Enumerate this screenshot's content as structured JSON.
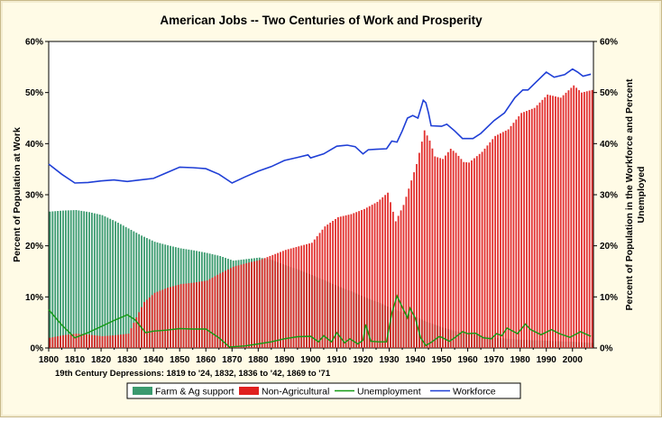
{
  "chart_data": {
    "type": "bar",
    "title": "American Jobs --  Two Centuries of  Work and Prosperity",
    "xlabel": "",
    "ylabel": "Percent of Population at Work",
    "ylabel_right_line1": "Percent of Population in the Workforce and Percent",
    "ylabel_right_line2": "Unemployed",
    "annotation": "19th Century Depressions: 1819 to '24, 1832, 1836 to '42, 1869 to '71",
    "xlim": [
      1800,
      2008
    ],
    "ylim": [
      0,
      60
    ],
    "x_ticks": [
      1800,
      1810,
      1820,
      1830,
      1840,
      1850,
      1860,
      1870,
      1880,
      1890,
      1900,
      1910,
      1920,
      1930,
      1940,
      1950,
      1960,
      1970,
      1980,
      1990,
      2000
    ],
    "y_ticks_left": [
      "0%",
      "10%",
      "20%",
      "30%",
      "40%",
      "50%",
      "60%"
    ],
    "y_ticks_right": [
      "0%",
      "10%",
      "20%",
      "30%",
      "40%",
      "50%",
      "60%"
    ],
    "grid": false,
    "legend_position": "bottom",
    "colors": {
      "farm": "#3a9a6e",
      "nonag": "#e0201e",
      "unemployment": "#139a13",
      "workforce": "#1f3fd6"
    },
    "series": [
      {
        "name": "Farm & Ag support",
        "kind": "bar",
        "points": [
          [
            1800,
            26.7
          ],
          [
            1805,
            26.9
          ],
          [
            1810,
            27.0
          ],
          [
            1815,
            26.6
          ],
          [
            1820,
            26.0
          ],
          [
            1825,
            24.8
          ],
          [
            1830,
            23.4
          ],
          [
            1835,
            22.0
          ],
          [
            1840,
            20.8
          ],
          [
            1845,
            20.1
          ],
          [
            1850,
            19.5
          ],
          [
            1855,
            19.1
          ],
          [
            1860,
            18.6
          ],
          [
            1865,
            18.0
          ],
          [
            1870,
            17.1
          ],
          [
            1875,
            17.4
          ],
          [
            1880,
            17.7
          ],
          [
            1885,
            17.2
          ],
          [
            1890,
            16.2
          ],
          [
            1895,
            15.3
          ],
          [
            1900,
            14.3
          ],
          [
            1905,
            13.2
          ],
          [
            1910,
            12.1
          ],
          [
            1915,
            11.1
          ],
          [
            1920,
            10.0
          ],
          [
            1925,
            9.0
          ],
          [
            1930,
            7.9
          ],
          [
            1935,
            6.9
          ],
          [
            1940,
            6.0
          ],
          [
            1945,
            4.9
          ],
          [
            1950,
            4.0
          ],
          [
            1955,
            3.3
          ],
          [
            1960,
            2.8
          ],
          [
            1965,
            2.4
          ],
          [
            1970,
            2.0
          ],
          [
            1975,
            1.8
          ],
          [
            1980,
            1.6
          ],
          [
            1985,
            1.5
          ],
          [
            1990,
            1.4
          ],
          [
            1995,
            1.3
          ],
          [
            2000,
            1.2
          ],
          [
            2007,
            1.0
          ]
        ]
      },
      {
        "name": "Non-Agricultural",
        "kind": "bar",
        "points": [
          [
            1800,
            2.0
          ],
          [
            1805,
            2.5
          ],
          [
            1810,
            2.8
          ],
          [
            1815,
            2.6
          ],
          [
            1820,
            2.3
          ],
          [
            1825,
            2.5
          ],
          [
            1830,
            2.8
          ],
          [
            1833,
            6.0
          ],
          [
            1836,
            9.0
          ],
          [
            1840,
            10.8
          ],
          [
            1845,
            11.8
          ],
          [
            1850,
            12.5
          ],
          [
            1855,
            12.8
          ],
          [
            1860,
            13.2
          ],
          [
            1865,
            14.6
          ],
          [
            1870,
            15.9
          ],
          [
            1875,
            16.6
          ],
          [
            1880,
            17.2
          ],
          [
            1885,
            18.2
          ],
          [
            1890,
            19.2
          ],
          [
            1895,
            19.9
          ],
          [
            1900,
            20.6
          ],
          [
            1905,
            23.8
          ],
          [
            1910,
            25.6
          ],
          [
            1915,
            26.2
          ],
          [
            1920,
            27.2
          ],
          [
            1925,
            28.6
          ],
          [
            1929,
            30.4
          ],
          [
            1932,
            24.8
          ],
          [
            1935,
            28.0
          ],
          [
            1940,
            36.0
          ],
          [
            1943,
            42.6
          ],
          [
            1945,
            40.6
          ],
          [
            1947,
            37.5
          ],
          [
            1950,
            37.0
          ],
          [
            1953,
            39.0
          ],
          [
            1955,
            38.2
          ],
          [
            1958,
            36.4
          ],
          [
            1960,
            36.3
          ],
          [
            1965,
            38.4
          ],
          [
            1970,
            41.5
          ],
          [
            1975,
            42.8
          ],
          [
            1980,
            46.0
          ],
          [
            1985,
            47.0
          ],
          [
            1990,
            49.6
          ],
          [
            1995,
            49.0
          ],
          [
            2000,
            51.4
          ],
          [
            2003,
            50.0
          ],
          [
            2007,
            50.5
          ]
        ]
      },
      {
        "name": "Unemployment",
        "kind": "line",
        "points": [
          [
            1800,
            7.5
          ],
          [
            1805,
            4.5
          ],
          [
            1810,
            2.0
          ],
          [
            1815,
            3.0
          ],
          [
            1820,
            4.2
          ],
          [
            1825,
            5.4
          ],
          [
            1830,
            6.5
          ],
          [
            1833,
            5.5
          ],
          [
            1837,
            3.0
          ],
          [
            1840,
            3.3
          ],
          [
            1845,
            3.5
          ],
          [
            1850,
            3.8
          ],
          [
            1855,
            3.7
          ],
          [
            1860,
            3.7
          ],
          [
            1865,
            2.0
          ],
          [
            1869,
            0.2
          ],
          [
            1875,
            0.4
          ],
          [
            1880,
            0.8
          ],
          [
            1885,
            1.2
          ],
          [
            1890,
            1.8
          ],
          [
            1895,
            2.2
          ],
          [
            1900,
            2.3
          ],
          [
            1903,
            1.2
          ],
          [
            1905,
            2.4
          ],
          [
            1908,
            1.2
          ],
          [
            1910,
            3.0
          ],
          [
            1913,
            1.0
          ],
          [
            1915,
            1.8
          ],
          [
            1918,
            0.8
          ],
          [
            1920,
            1.5
          ],
          [
            1921,
            4.6
          ],
          [
            1923,
            1.3
          ],
          [
            1926,
            1.2
          ],
          [
            1929,
            1.2
          ],
          [
            1931,
            6.8
          ],
          [
            1933,
            10.2
          ],
          [
            1935,
            8.0
          ],
          [
            1937,
            5.9
          ],
          [
            1938,
            7.8
          ],
          [
            1940,
            5.8
          ],
          [
            1942,
            2.0
          ],
          [
            1944,
            0.5
          ],
          [
            1946,
            1.1
          ],
          [
            1949,
            2.2
          ],
          [
            1950,
            2.1
          ],
          [
            1953,
            1.3
          ],
          [
            1955,
            2.0
          ],
          [
            1958,
            3.2
          ],
          [
            1960,
            2.8
          ],
          [
            1963,
            2.9
          ],
          [
            1966,
            2.0
          ],
          [
            1969,
            1.8
          ],
          [
            1971,
            2.8
          ],
          [
            1973,
            2.4
          ],
          [
            1975,
            3.9
          ],
          [
            1979,
            2.8
          ],
          [
            1982,
            4.7
          ],
          [
            1984,
            3.6
          ],
          [
            1988,
            2.6
          ],
          [
            1992,
            3.6
          ],
          [
            1995,
            2.8
          ],
          [
            1999,
            2.1
          ],
          [
            2002,
            2.9
          ],
          [
            2003,
            3.2
          ],
          [
            2007,
            2.3
          ]
        ]
      },
      {
        "name": "Workforce",
        "kind": "line",
        "points": [
          [
            1800,
            36.0
          ],
          [
            1805,
            34.0
          ],
          [
            1810,
            32.3
          ],
          [
            1815,
            32.4
          ],
          [
            1820,
            32.7
          ],
          [
            1825,
            32.9
          ],
          [
            1830,
            32.6
          ],
          [
            1835,
            32.9
          ],
          [
            1840,
            33.2
          ],
          [
            1845,
            34.3
          ],
          [
            1850,
            35.4
          ],
          [
            1855,
            35.3
          ],
          [
            1860,
            35.1
          ],
          [
            1865,
            34.0
          ],
          [
            1870,
            32.3
          ],
          [
            1875,
            33.5
          ],
          [
            1880,
            34.6
          ],
          [
            1885,
            35.5
          ],
          [
            1890,
            36.7
          ],
          [
            1895,
            37.3
          ],
          [
            1899,
            37.8
          ],
          [
            1900,
            37.2
          ],
          [
            1905,
            38.0
          ],
          [
            1910,
            39.5
          ],
          [
            1914,
            39.7
          ],
          [
            1917,
            39.4
          ],
          [
            1920,
            38.0
          ],
          [
            1922,
            38.8
          ],
          [
            1925,
            38.9
          ],
          [
            1929,
            39.0
          ],
          [
            1931,
            40.5
          ],
          [
            1933,
            40.3
          ],
          [
            1935,
            42.5
          ],
          [
            1937,
            45.0
          ],
          [
            1939,
            45.5
          ],
          [
            1941,
            45.0
          ],
          [
            1943,
            48.5
          ],
          [
            1944,
            48.0
          ],
          [
            1945,
            46.0
          ],
          [
            1946,
            43.5
          ],
          [
            1950,
            43.4
          ],
          [
            1952,
            43.8
          ],
          [
            1955,
            42.5
          ],
          [
            1958,
            41.0
          ],
          [
            1962,
            41.0
          ],
          [
            1965,
            42.0
          ],
          [
            1970,
            44.5
          ],
          [
            1974,
            46.0
          ],
          [
            1978,
            49.0
          ],
          [
            1981,
            50.5
          ],
          [
            1983,
            50.5
          ],
          [
            1986,
            52.0
          ],
          [
            1990,
            54.0
          ],
          [
            1993,
            53.0
          ],
          [
            1997,
            53.5
          ],
          [
            2000,
            54.6
          ],
          [
            2002,
            54.0
          ],
          [
            2004,
            53.2
          ],
          [
            2007,
            53.6
          ]
        ]
      }
    ]
  }
}
